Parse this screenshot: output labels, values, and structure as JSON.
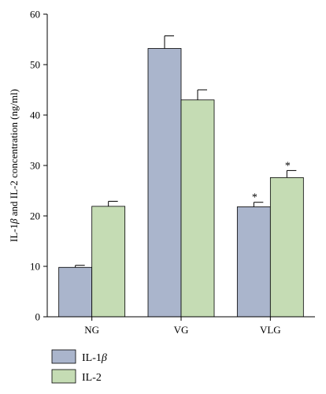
{
  "chart_data": {
    "type": "bar",
    "categories": [
      "NG",
      "VG",
      "VLG"
    ],
    "ylabel_parts": [
      "IL-1",
      "β",
      " and IL-2 concentration (ng/ml)"
    ],
    "ylim": [
      0,
      60
    ],
    "yticks": [
      0,
      10,
      20,
      30,
      40,
      50,
      60
    ],
    "grid": false,
    "legend_position": "bottom-left",
    "series": [
      {
        "name_parts": [
          "IL-1",
          "β"
        ],
        "color": "#aab5cc",
        "values": [
          9.8,
          53.2,
          21.8
        ],
        "errors": [
          0.4,
          2.5,
          0.9
        ],
        "annotations": [
          "",
          "",
          "*"
        ]
      },
      {
        "name_parts": [
          "IL-2",
          ""
        ],
        "color": "#c5dcb4",
        "values": [
          21.9,
          43.0,
          27.6
        ],
        "errors": [
          1.0,
          2.0,
          1.4
        ],
        "annotations": [
          "",
          "",
          "*"
        ]
      }
    ]
  }
}
